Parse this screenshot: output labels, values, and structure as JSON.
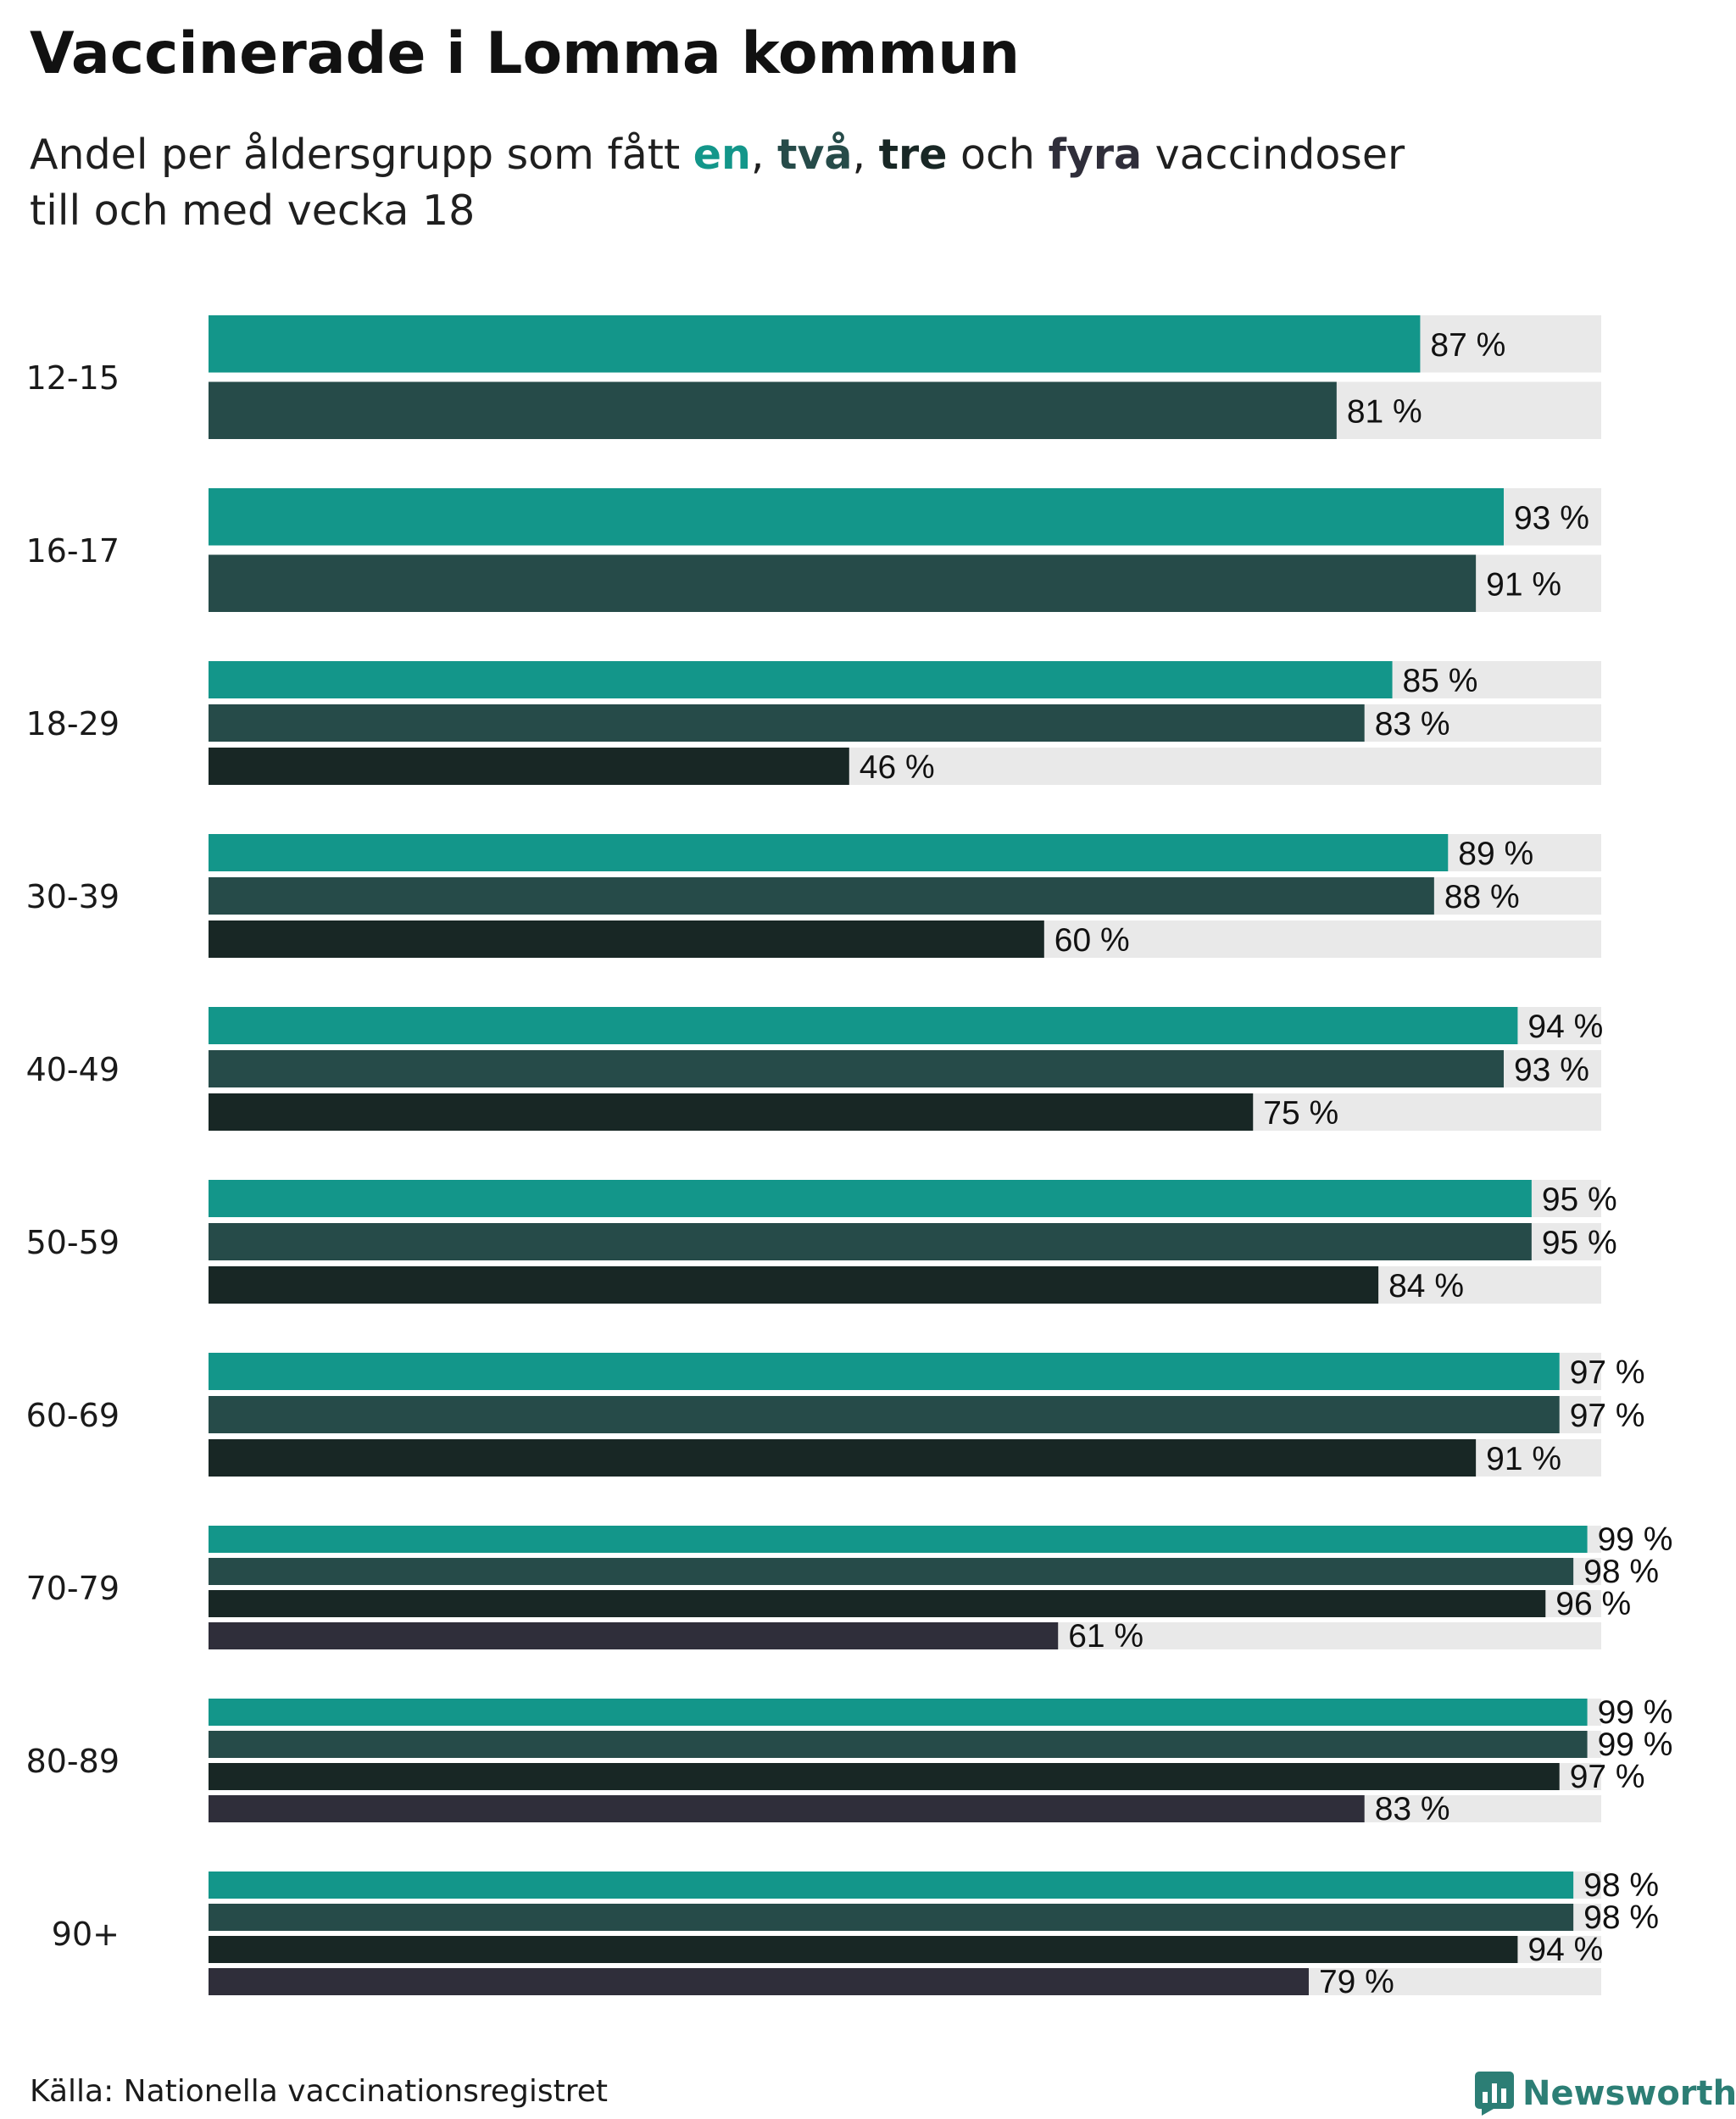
{
  "title": "Vaccinerade i Lomma kommun",
  "subtitle": {
    "prefix": "Andel per åldersgrupp som fått ",
    "dose_words": [
      "en",
      "två",
      "tre",
      "fyra"
    ],
    "sep_1": ", ",
    "sep_2": ", ",
    "sep_3": " och ",
    "suffix_line1": " vaccindoser",
    "line2": "till och med vecka 18"
  },
  "colors": {
    "dose_1": "#13968a",
    "dose_2": "#264b49",
    "dose_3": "#182725",
    "dose_4": "#2f2e3a",
    "track": "#e9e9e9"
  },
  "chart_data": {
    "type": "bar",
    "orientation": "horizontal",
    "title": "Vaccinerade i Lomma kommun",
    "subtitle": "Andel per åldersgrupp som fått en, två, tre och fyra vaccindoser till och med vecka 18",
    "xlim": [
      0,
      100
    ],
    "value_suffix": " %",
    "grid": false,
    "legend": "in subtitle",
    "categories": [
      "12-15",
      "16-17",
      "18-29",
      "30-39",
      "40-49",
      "50-59",
      "60-69",
      "70-79",
      "80-89",
      "90+"
    ],
    "series": [
      {
        "name": "en",
        "values": [
          87,
          93,
          85,
          89,
          94,
          95,
          97,
          99,
          99,
          98
        ]
      },
      {
        "name": "två",
        "values": [
          81,
          91,
          83,
          88,
          93,
          95,
          97,
          98,
          99,
          98
        ]
      },
      {
        "name": "tre",
        "values": [
          null,
          null,
          46,
          60,
          75,
          84,
          91,
          96,
          97,
          94
        ]
      },
      {
        "name": "fyra",
        "values": [
          null,
          null,
          null,
          null,
          null,
          null,
          null,
          61,
          83,
          79
        ]
      }
    ]
  },
  "source": "Källa: Nationella vaccinationsregistret",
  "brand": {
    "name": "Newsworthy",
    "icon": "newsworthy-logo-icon"
  }
}
